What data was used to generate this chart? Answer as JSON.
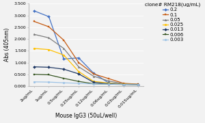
{
  "x_labels": [
    "2ug/mL",
    "1ug/mL",
    "0.5ug/mL",
    "0.25ug/mL",
    "0.12ug/mL",
    "0.06ug/mL",
    "0.03ug/mL",
    "0.015ug/mL"
  ],
  "xlabel": "Mouse IgG3 (50uL/well)",
  "ylabel": "Abs (405nm)",
  "legend_title": "clone# RM218(ug/mL)",
  "series": [
    {
      "label": "0.2",
      "color": "#4472C4",
      "marker": "D",
      "values": [
        3.2,
        2.95,
        1.15,
        1.2,
        0.55,
        0.14,
        0.08,
        0.07
      ]
    },
    {
      "label": "0.1",
      "color": "#C55A11",
      "marker": "s",
      "values": [
        2.75,
        2.52,
        1.95,
        1.0,
        0.52,
        0.32,
        0.12,
        0.08
      ]
    },
    {
      "label": "0.05",
      "color": "#7F7F7F",
      "marker": "^",
      "values": [
        2.2,
        2.05,
        1.6,
        0.82,
        0.42,
        0.22,
        0.1,
        0.07
      ]
    },
    {
      "label": "0.025",
      "color": "#FFC000",
      "marker": "o",
      "values": [
        1.6,
        1.55,
        1.32,
        0.62,
        0.2,
        0.13,
        0.08,
        0.07
      ]
    },
    {
      "label": "0.013",
      "color": "#1F3864",
      "marker": "D",
      "values": [
        0.82,
        0.8,
        0.72,
        0.52,
        0.16,
        0.1,
        0.07,
        0.06
      ]
    },
    {
      "label": "0.006",
      "color": "#375623",
      "marker": "s",
      "values": [
        0.5,
        0.48,
        0.33,
        0.2,
        0.1,
        0.08,
        0.07,
        0.06
      ]
    },
    {
      "label": "0.003",
      "color": "#9DC3E6",
      "marker": "o",
      "values": [
        0.18,
        0.17,
        0.14,
        0.12,
        0.09,
        0.08,
        0.07,
        0.06
      ]
    }
  ],
  "ylim": [
    0,
    3.5
  ],
  "yticks": [
    0.0,
    0.5,
    1.0,
    1.5,
    2.0,
    2.5,
    3.0,
    3.5
  ],
  "fig_width": 3.0,
  "fig_height": 1.8,
  "dpi": 100,
  "bg_color": "#f2f2f2",
  "axis_fontsize": 5.5,
  "tick_fontsize": 4.5,
  "legend_fontsize": 5.0,
  "legend_title_fontsize": 5.2,
  "line_width": 0.9,
  "marker_size": 2.0
}
